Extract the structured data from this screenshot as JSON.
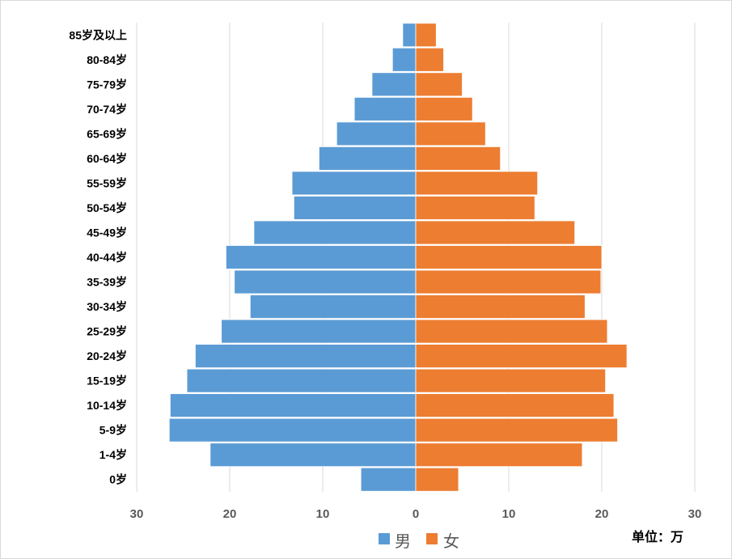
{
  "chart_data": {
    "type": "bar",
    "orientation": "horizontal-population-pyramid",
    "categories": [
      "85岁及以上",
      "80-84岁",
      "75-79岁",
      "70-74岁",
      "65-69岁",
      "60-64岁",
      "55-59岁",
      "50-54岁",
      "45-49岁",
      "40-44岁",
      "35-39岁",
      "30-34岁",
      "25-29岁",
      "20-24岁",
      "15-19岁",
      "10-14岁",
      "5-9岁",
      "1-4岁",
      "0岁"
    ],
    "series": [
      {
        "name": "男",
        "color": "#5b9bd5",
        "values": [
          1.4,
          2.5,
          4.7,
          6.6,
          8.5,
          10.4,
          13.3,
          13.1,
          17.4,
          20.4,
          19.5,
          17.8,
          20.9,
          23.7,
          24.6,
          26.4,
          26.5,
          22.1,
          5.9
        ]
      },
      {
        "name": "女",
        "color": "#ed7d31",
        "values": [
          2.2,
          3.0,
          5.0,
          6.1,
          7.5,
          9.1,
          13.1,
          12.8,
          17.1,
          20.0,
          19.9,
          18.2,
          20.6,
          22.7,
          20.4,
          21.3,
          21.7,
          17.9,
          4.6
        ]
      }
    ],
    "x_ticks": [
      "30",
      "20",
      "10",
      "0",
      "10",
      "20",
      "30"
    ],
    "xlim": [
      -30,
      30
    ],
    "grid": "vertical",
    "legend": "bottom-center",
    "unit_note": "单位：万"
  }
}
